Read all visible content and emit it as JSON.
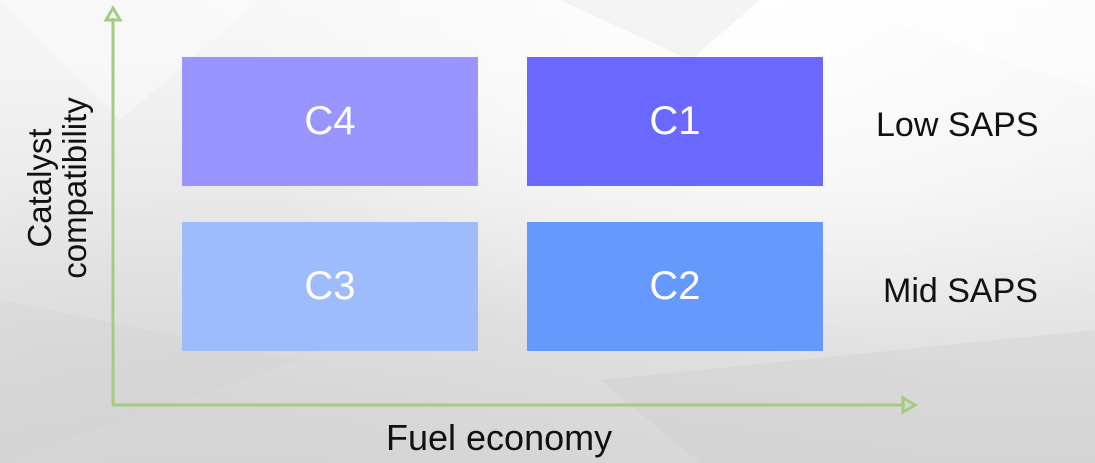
{
  "diagram": {
    "boxes": {
      "top_left": {
        "label": "C4",
        "color": "#9896fe"
      },
      "top_right": {
        "label": "C1",
        "color": "#6a68ff"
      },
      "bottom_left": {
        "label": "C3",
        "color": "#9ebbfb"
      },
      "bottom_right": {
        "label": "C2",
        "color": "#6699fe"
      }
    },
    "row_labels": {
      "top": "Low SAPS",
      "bottom": "Mid SAPS"
    },
    "x_axis_label": "Fuel economy",
    "y_axis_label_lines": [
      "Catalyst",
      "compatibility"
    ],
    "axis_color": "#a4cb82"
  }
}
